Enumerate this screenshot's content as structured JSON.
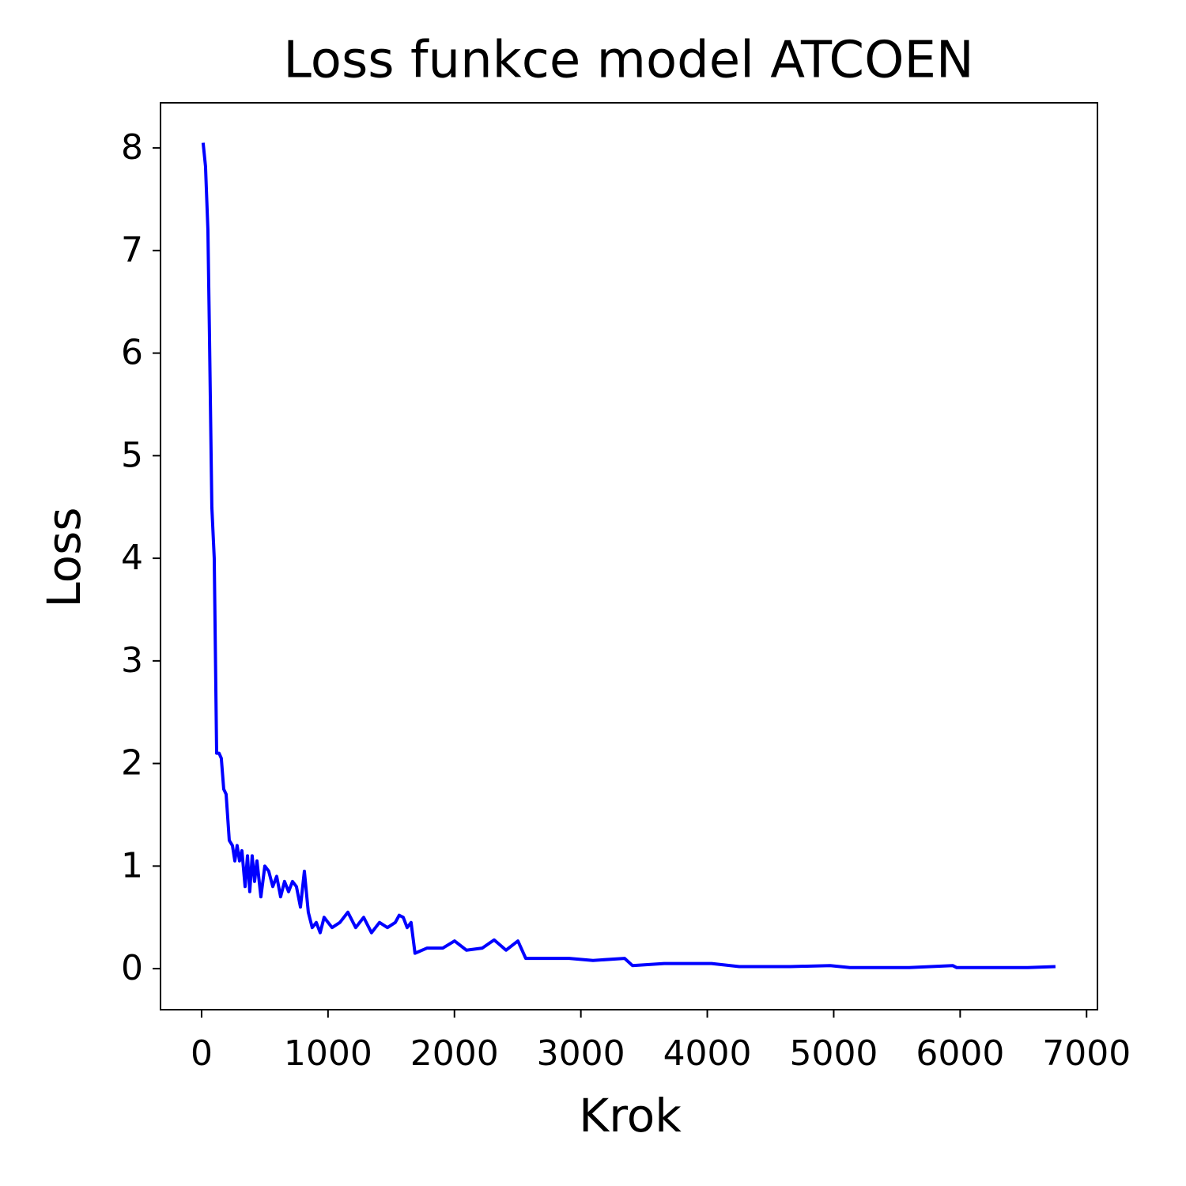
{
  "chart_data": {
    "type": "line",
    "title": "Loss funkce model ATCOEN",
    "x_label": "Krok",
    "y_label": "Loss",
    "x": [
      12,
      31,
      50,
      62,
      81,
      100,
      119,
      138,
      156,
      175,
      194,
      219,
      244,
      263,
      281,
      300,
      319,
      344,
      363,
      381,
      400,
      419,
      438,
      469,
      500,
      531,
      563,
      594,
      625,
      656,
      688,
      719,
      750,
      782,
      813,
      844,
      875,
      907,
      938,
      969,
      1032,
      1094,
      1157,
      1219,
      1282,
      1344,
      1407,
      1470,
      1532,
      1563,
      1595,
      1626,
      1657,
      1688,
      1782,
      1907,
      2001,
      2095,
      2220,
      2314,
      2408,
      2502,
      2564,
      2720,
      2908,
      3096,
      3346,
      3408,
      3659,
      4034,
      4253,
      4659,
      4972,
      5128,
      5597,
      5941,
      5973,
      6535,
      6754
    ],
    "series": [
      {
        "name": "Loss",
        "color": "#0000ff",
        "values": [
          8.05,
          7.82,
          7.2,
          6.2,
          4.5,
          4.0,
          2.1,
          2.1,
          2.05,
          1.75,
          1.7,
          1.25,
          1.2,
          1.05,
          1.2,
          1.05,
          1.15,
          0.8,
          1.1,
          0.75,
          1.1,
          0.85,
          1.05,
          0.7,
          1.0,
          0.95,
          0.8,
          0.9,
          0.7,
          0.85,
          0.75,
          0.85,
          0.8,
          0.6,
          0.95,
          0.55,
          0.4,
          0.45,
          0.35,
          0.5,
          0.4,
          0.45,
          0.55,
          0.4,
          0.5,
          0.35,
          0.45,
          0.4,
          0.45,
          0.52,
          0.5,
          0.4,
          0.45,
          0.15,
          0.2,
          0.2,
          0.27,
          0.18,
          0.2,
          0.28,
          0.18,
          0.27,
          0.1,
          0.1,
          0.1,
          0.08,
          0.1,
          0.03,
          0.05,
          0.05,
          0.02,
          0.02,
          0.03,
          0.01,
          0.01,
          0.03,
          0.01,
          0.01,
          0.02
        ]
      }
    ],
    "xlim": [
      -325,
      7086
    ],
    "xticks": [
      0,
      1000,
      2000,
      3000,
      4000,
      5000,
      6000,
      7000
    ],
    "ylim": [
      -0.4,
      8.44
    ],
    "yticks": [
      0,
      1,
      2,
      3,
      4,
      5,
      6,
      7,
      8
    ],
    "grid": false
  }
}
